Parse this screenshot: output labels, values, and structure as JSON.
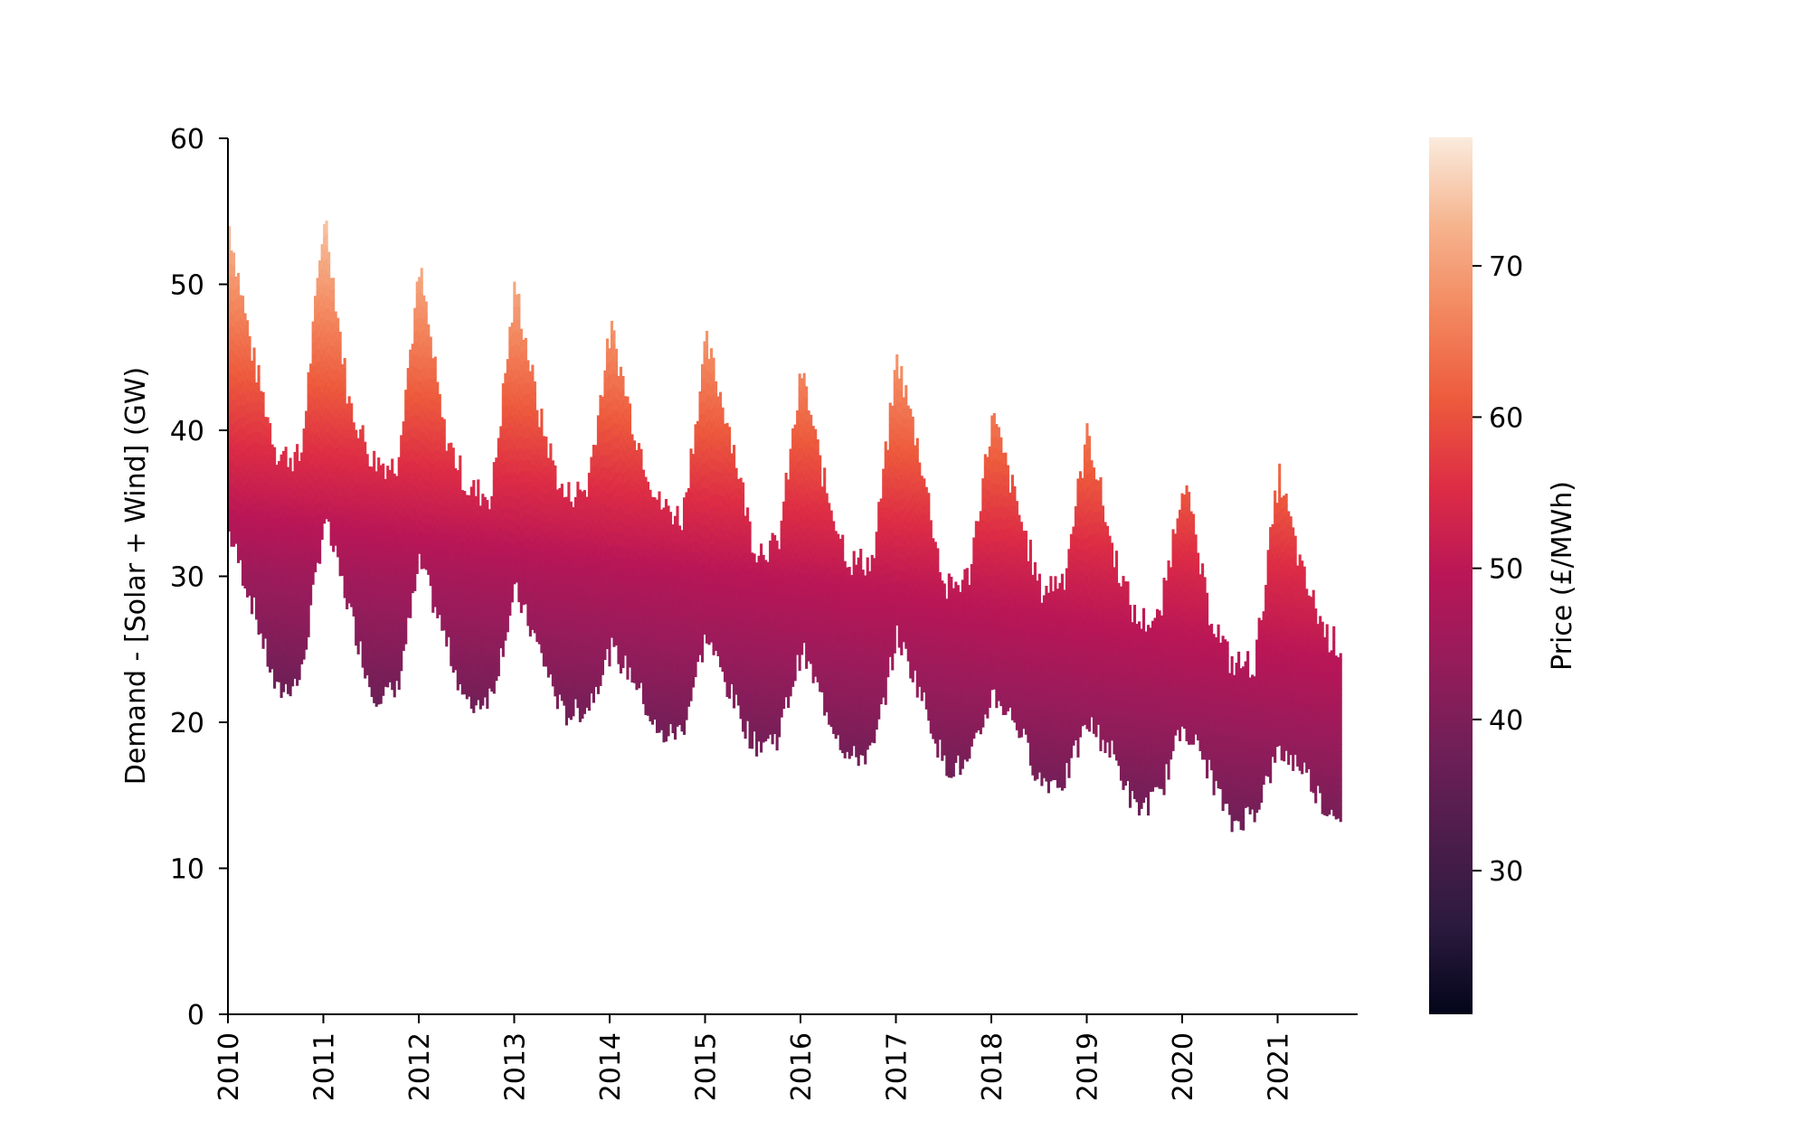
{
  "chart_data": {
    "type": "heatmap",
    "title": "",
    "xlabel": "",
    "ylabel": "Demand - [Solar + Wind] (GW)",
    "x_ticks": [
      "2010",
      "2011",
      "2012",
      "2013",
      "2014",
      "2015",
      "2016",
      "2017",
      "2018",
      "2019",
      "2020",
      "2021"
    ],
    "xlim": [
      "2010-01-01",
      "2021-09-30"
    ],
    "y_ticks": [
      "0",
      "10",
      "20",
      "30",
      "40",
      "50",
      "60"
    ],
    "ylim": [
      0,
      60
    ],
    "colorbar": {
      "label": "Price (£/MWh)",
      "ticks": [
        "30",
        "40",
        "50",
        "60",
        "70"
      ],
      "range": [
        20.5,
        78.5
      ],
      "colormap": "rocket",
      "colors": [
        "#03051a",
        "#2b1a3e",
        "#4c1d4b",
        "#6f1f57",
        "#951c5b",
        "#b91657",
        "#dd2c45",
        "#ed5a3c",
        "#f3875e",
        "#f6b48e",
        "#faebdd"
      ]
    },
    "series": [
      {
        "x": [
          2010.0,
          2010.25,
          2010.5,
          2010.75,
          2011.0,
          2011.25,
          2011.5,
          2011.75,
          2012.0,
          2012.25,
          2012.5,
          2012.75,
          2013.0,
          2013.25,
          2013.5,
          2013.75,
          2014.0,
          2014.25,
          2014.5,
          2014.75,
          2015.0,
          2015.25,
          2015.5,
          2015.75,
          2016.0,
          2016.25,
          2016.5,
          2016.75,
          2017.0,
          2017.25,
          2017.5,
          2017.75,
          2018.0,
          2018.25,
          2018.5,
          2018.75,
          2019.0,
          2019.25,
          2019.5,
          2019.75,
          2020.0,
          2020.25,
          2020.5,
          2020.75,
          2021.0,
          2021.25,
          2021.5,
          2021.67
        ],
        "upper": [
          54,
          45,
          38.5,
          38,
          55,
          42,
          38,
          37.5,
          51,
          40,
          36,
          35.5,
          50,
          41,
          35.5,
          36,
          47,
          40,
          35,
          34,
          46,
          40,
          32,
          32,
          44,
          36,
          31,
          31,
          45,
          38,
          29,
          30,
          41,
          35,
          29,
          30,
          40,
          32,
          27,
          27,
          37,
          28,
          24,
          24,
          37,
          30,
          26,
          25
        ],
        "lower": [
          33,
          28,
          22,
          23,
          34,
          28,
          22,
          22,
          31,
          26,
          21,
          22,
          29,
          25,
          20.5,
          21,
          25,
          23,
          19,
          19.5,
          26,
          22,
          18.5,
          19,
          25,
          21,
          17.5,
          18,
          26,
          22,
          17,
          17,
          22,
          20,
          16,
          16,
          20,
          18,
          14,
          15,
          20,
          17,
          13,
          14,
          18,
          17,
          14,
          14
        ]
      }
    ]
  }
}
